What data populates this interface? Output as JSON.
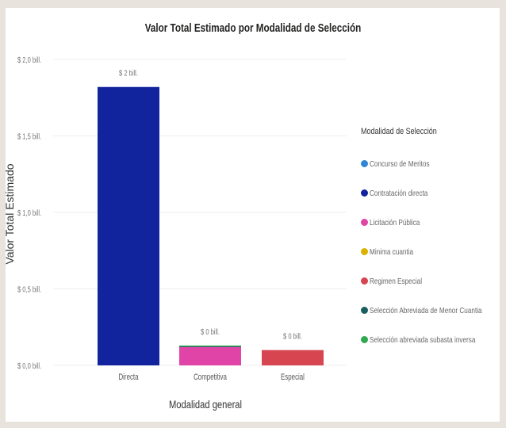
{
  "chart_data": {
    "type": "bar",
    "title": "Valor Total Estimado por Modalidad de Selección",
    "xlabel": "Modalidad general",
    "ylabel": "Valor Total Estimado",
    "categories": [
      "Directa",
      "Competitiva",
      "Especial"
    ],
    "ylim": [
      0,
      2.0
    ],
    "yticks": [
      0,
      0.5,
      1.0,
      1.5,
      2.0
    ],
    "ytick_labels": [
      "$ 0,0 bill.",
      "$ 0,5 bill.",
      "$ 1,0 bill.",
      "$ 1,5 bill.",
      "$ 2,0 bill."
    ],
    "series": [
      {
        "name": "Concurso de Meritos",
        "color": "#2f86d6",
        "values": [
          0,
          0.0,
          0
        ]
      },
      {
        "name": "Contratación directa",
        "color": "#12239e",
        "values": [
          1.82,
          0,
          0
        ]
      },
      {
        "name": "Licitación Pública",
        "color": "#e044a7",
        "values": [
          0,
          0.12,
          0
        ]
      },
      {
        "name": "Minima cuantia",
        "color": "#d9b300",
        "values": [
          0,
          0,
          0
        ]
      },
      {
        "name": "Regimen Especial",
        "color": "#d64550",
        "values": [
          0,
          0,
          0.1
        ]
      },
      {
        "name": "Selección Abreviada de Menor Cuantia",
        "color": "#1a5f5f",
        "values": [
          0,
          0.005,
          0
        ]
      },
      {
        "name": "Selección abreviada subasta inversa",
        "color": "#2fa84f",
        "values": [
          0,
          0.005,
          0
        ]
      }
    ],
    "data_labels": [
      "$ 2 bill.",
      "$ 0 bill.",
      "$ 0 bill."
    ],
    "legend": {
      "title": "Modalidad de Selección",
      "placement": "right"
    },
    "grid": true
  }
}
